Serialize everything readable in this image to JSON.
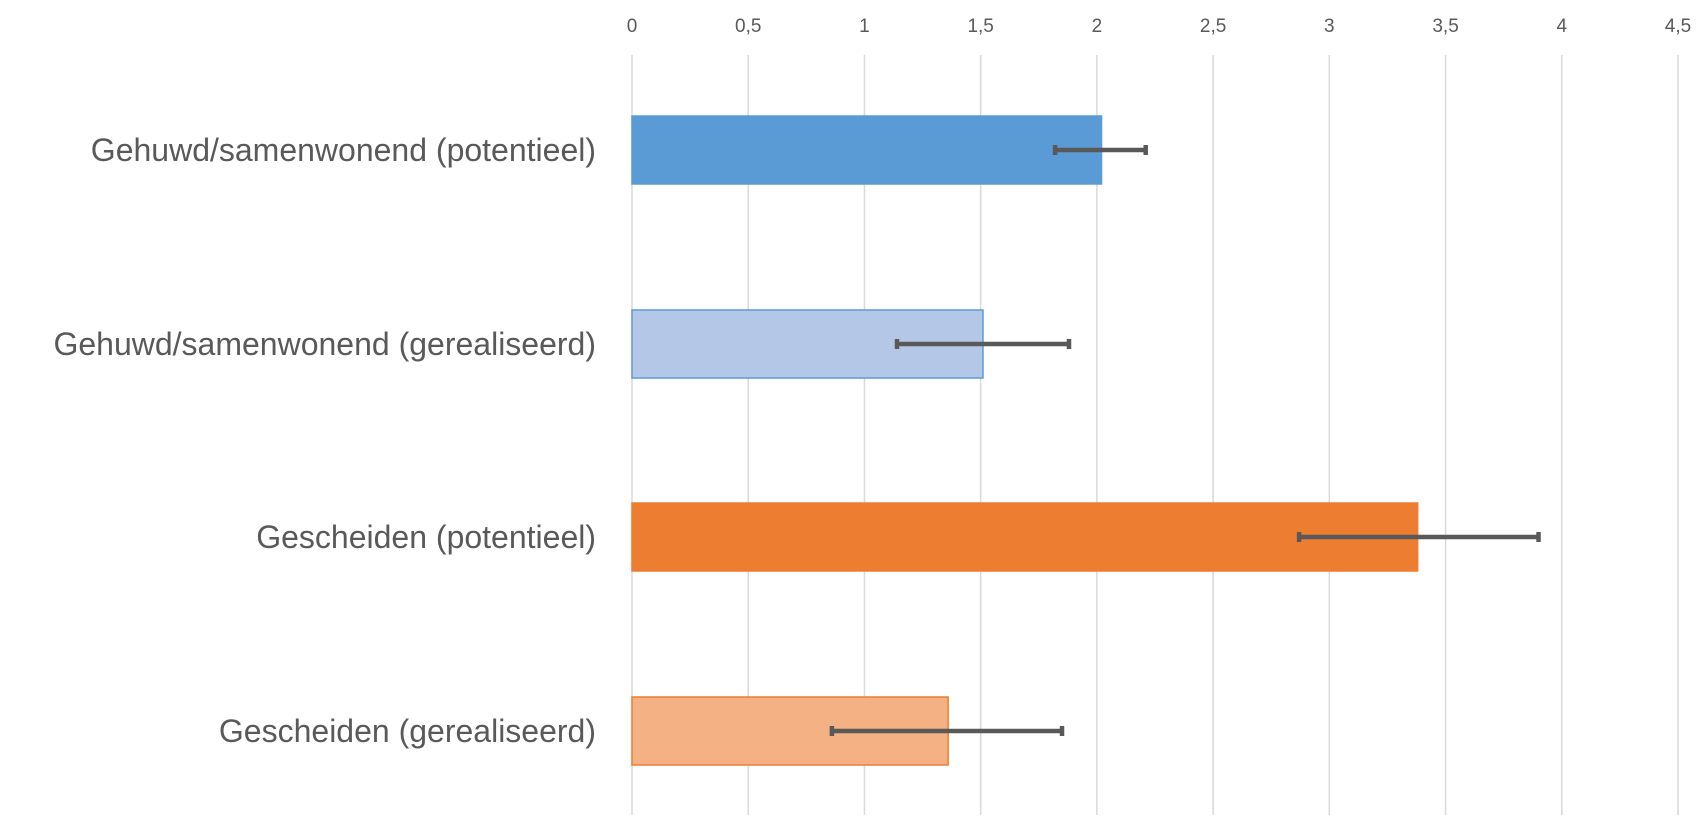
{
  "chart_data": {
    "type": "bar",
    "orientation": "horizontal",
    "xlim": [
      0,
      4.5
    ],
    "x_ticks": [
      0,
      0.5,
      1,
      1.5,
      2,
      2.5,
      3,
      3.5,
      4,
      4.5
    ],
    "x_tick_labels": [
      "0",
      "0,5",
      "1",
      "1,5",
      "2",
      "2,5",
      "3",
      "3,5",
      "4",
      "4,5"
    ],
    "x_axis_position": "top",
    "grid": true,
    "categories": [
      "Gehuwd/samenwonend (potentieel)",
      "Gehuwd/samenwonend (gerealiseerd)",
      "Gescheiden (potentieel)",
      "Gescheiden (gerealiseerd)"
    ],
    "values": [
      2.02,
      1.51,
      3.38,
      1.36
    ],
    "error_low": [
      1.82,
      1.14,
      2.87,
      0.86
    ],
    "error_high": [
      2.21,
      1.88,
      3.9,
      1.85
    ],
    "colors": [
      "#5b9bd5",
      "#b4c7e7",
      "#ed7d31",
      "#f4b183"
    ],
    "border_colors": [
      "#5b9bd5",
      "#5b9bd5",
      "#ed7d31",
      "#ed7d31"
    ],
    "title": "",
    "xlabel": "",
    "ylabel": ""
  }
}
